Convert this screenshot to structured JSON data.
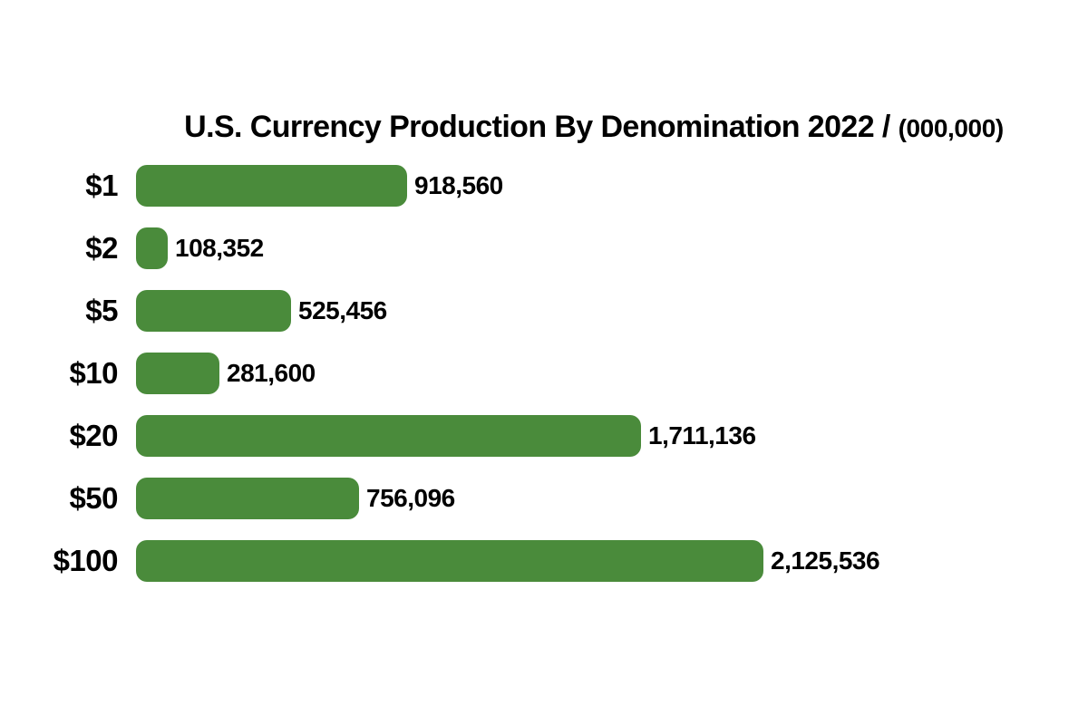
{
  "page": {
    "background_color": "#ffffff",
    "text_color": "#000000"
  },
  "chart": {
    "title_main": "U.S. Currency Production By Denomination 2022 /",
    "title_units": "(000,000)"
  },
  "chart_data": {
    "type": "bar",
    "orientation": "horizontal",
    "title": "U.S. Currency Production By Denomination 2022 / (000,000)",
    "categories": [
      "$1",
      "$2",
      "$5",
      "$10",
      "$20",
      "$50",
      "$100"
    ],
    "values": [
      918560,
      108352,
      525456,
      281600,
      1711136,
      756096,
      2125536
    ],
    "value_labels": [
      "918,560",
      "108,352",
      "525,456",
      "281,600",
      "1,711,136",
      "756,096",
      "2,125,536"
    ],
    "bar_color": "#4a8b3b",
    "label_color": "#000000",
    "xlim": [
      0,
      2125536
    ],
    "grid": false,
    "legend": false,
    "value_label_position": "right-of-bar",
    "category_label_position": "left-of-bar"
  }
}
